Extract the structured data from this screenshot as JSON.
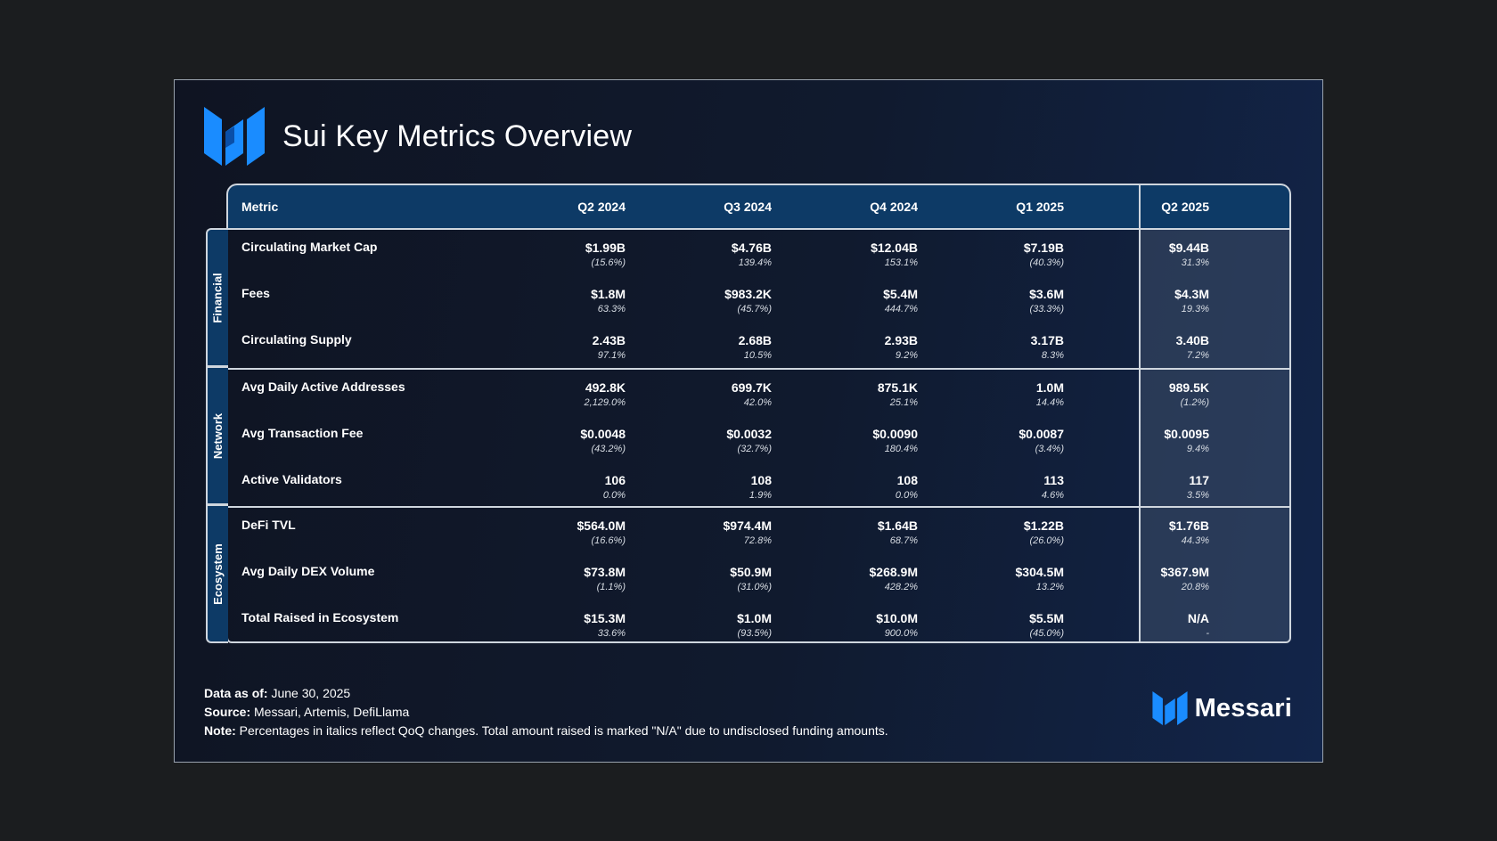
{
  "title": "Sui Key Metrics Overview",
  "brand": {
    "name": "Messari",
    "accent": "#1a8cff"
  },
  "table": {
    "header": {
      "metric": "Metric",
      "quarters": [
        "Q2 2024",
        "Q3 2024",
        "Q4 2024",
        "Q1 2025",
        "Q2 2025"
      ]
    },
    "groups": [
      {
        "label": "Financial",
        "rows": [
          {
            "name": "Circulating Market Cap",
            "values": [
              "$1.99B",
              "$4.76B",
              "$12.04B",
              "$7.19B",
              "$9.44B"
            ],
            "changes": [
              "(15.6%)",
              "139.4%",
              "153.1%",
              "(40.3%)",
              "31.3%"
            ]
          },
          {
            "name": "Fees",
            "values": [
              "$1.8M",
              "$983.2K",
              "$5.4M",
              "$3.6M",
              "$4.3M"
            ],
            "changes": [
              "63.3%",
              "(45.7%)",
              "444.7%",
              "(33.3%)",
              "19.3%"
            ]
          },
          {
            "name": "Circulating Supply",
            "values": [
              "2.43B",
              "2.68B",
              "2.93B",
              "3.17B",
              "3.40B"
            ],
            "changes": [
              "97.1%",
              "10.5%",
              "9.2%",
              "8.3%",
              "7.2%"
            ]
          }
        ]
      },
      {
        "label": "Network",
        "rows": [
          {
            "name": "Avg Daily Active Addresses",
            "values": [
              "492.8K",
              "699.7K",
              "875.1K",
              "1.0M",
              "989.5K"
            ],
            "changes": [
              "2,129.0%",
              "42.0%",
              "25.1%",
              "14.4%",
              "(1.2%)"
            ]
          },
          {
            "name": "Avg Transaction Fee",
            "values": [
              "$0.0048",
              "$0.0032",
              "$0.0090",
              "$0.0087",
              "$0.0095"
            ],
            "changes": [
              "(43.2%)",
              "(32.7%)",
              "180.4%",
              "(3.4%)",
              "9.4%"
            ]
          },
          {
            "name": "Active Validators",
            "values": [
              "106",
              "108",
              "108",
              "113",
              "117"
            ],
            "changes": [
              "0.0%",
              "1.9%",
              "0.0%",
              "4.6%",
              "3.5%"
            ]
          }
        ]
      },
      {
        "label": "Ecosystem",
        "rows": [
          {
            "name": "DeFi TVL",
            "values": [
              "$564.0M",
              "$974.4M",
              "$1.64B",
              "$1.22B",
              "$1.76B"
            ],
            "changes": [
              "(16.6%)",
              "72.8%",
              "68.7%",
              "(26.0%)",
              "44.3%"
            ]
          },
          {
            "name": "Avg Daily DEX Volume",
            "values": [
              "$73.8M",
              "$50.9M",
              "$268.9M",
              "$304.5M",
              "$367.9M"
            ],
            "changes": [
              "(1.1%)",
              "(31.0%)",
              "428.2%",
              "13.2%",
              "20.8%"
            ]
          },
          {
            "name": "Total Raised in Ecosystem",
            "values": [
              "$15.3M",
              "$1.0M",
              "$10.0M",
              "$5.5M",
              "N/A"
            ],
            "changes": [
              "33.6%",
              "(93.5%)",
              "900.0%",
              "(45.0%)",
              "-"
            ]
          }
        ]
      }
    ]
  },
  "footer": {
    "data_as_of_label": "Data as of:",
    "data_as_of_value": " June 30, 2025",
    "source_label": "Source:",
    "source_value": " Messari, Artemis, DefiLlama",
    "note_label": "Note:",
    "note_value": " Percentages in italics reflect QoQ changes. Total amount raised is marked \"N/A\" due to undisclosed funding amounts."
  }
}
